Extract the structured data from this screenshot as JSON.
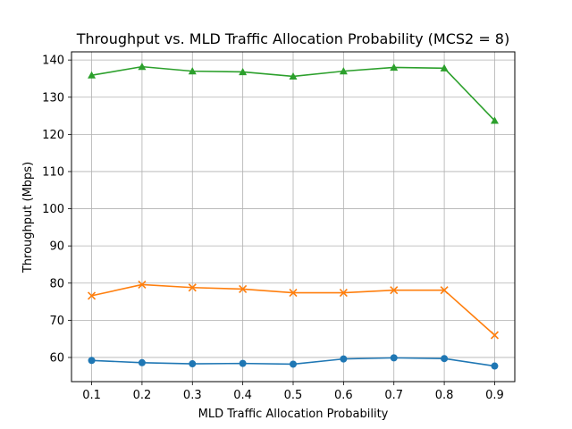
{
  "chart_data": {
    "type": "line",
    "title": "Throughput vs. MLD Traffic Allocation Probability (MCS2 = 8)",
    "xlabel": "MLD Traffic Allocation Probability",
    "ylabel": "Throughput (Mbps)",
    "x": [
      0.1,
      0.2,
      0.3,
      0.4,
      0.5,
      0.6,
      0.7,
      0.8,
      0.9
    ],
    "x_tick_labels": [
      "0.1",
      "0.2",
      "0.3",
      "0.4",
      "0.5",
      "0.6",
      "0.7",
      "0.8",
      "0.9"
    ],
    "xlim": [
      0.06,
      0.94
    ],
    "ylim": [
      53.5,
      142.2
    ],
    "y_ticks": [
      60,
      70,
      80,
      90,
      100,
      110,
      120,
      130,
      140
    ],
    "y_tick_labels": [
      "60",
      "70",
      "80",
      "90",
      "100",
      "110",
      "120",
      "130",
      "140"
    ],
    "grid": true,
    "series": [
      {
        "color": "#1f77b4",
        "marker": "circle",
        "values": [
          59.2,
          58.6,
          58.3,
          58.4,
          58.2,
          59.6,
          59.9,
          59.7,
          57.7
        ]
      },
      {
        "color": "#ff7f0e",
        "marker": "x",
        "values": [
          76.6,
          79.6,
          78.8,
          78.4,
          77.4,
          77.4,
          78.1,
          78.1,
          66.0
        ]
      },
      {
        "color": "#2ca02c",
        "marker": "triangle",
        "values": [
          135.9,
          138.2,
          137.0,
          136.8,
          135.6,
          137.0,
          138.0,
          137.8,
          123.7
        ]
      }
    ]
  }
}
